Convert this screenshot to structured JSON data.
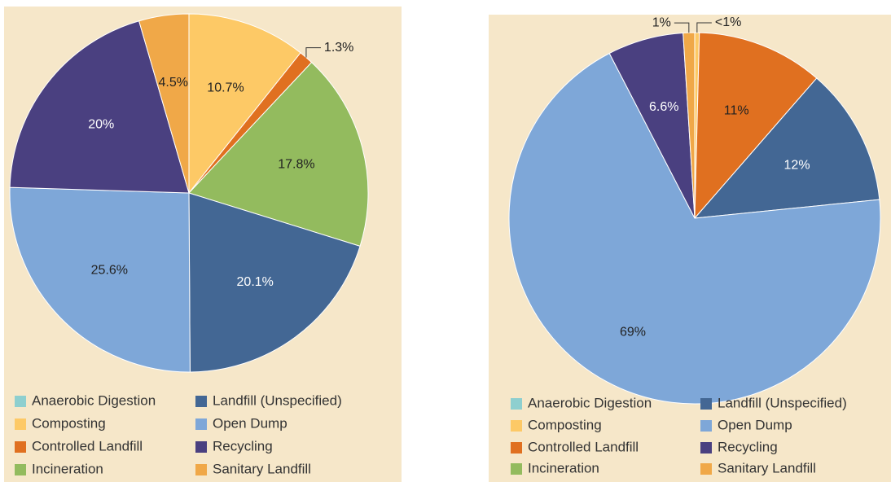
{
  "chart_data": [
    {
      "type": "pie",
      "categories": [
        "Anaerobic Digestion",
        "Composting",
        "Controlled Landfill",
        "Incineration",
        "Landfill (Unspecified)",
        "Open Dump",
        "Recycling",
        "Sanitary Landfill"
      ],
      "values": [
        0,
        10.7,
        1.3,
        17.8,
        20.1,
        25.6,
        20,
        4.5
      ],
      "value_labels": [
        null,
        "10.7%",
        "1.3%",
        "17.8%",
        "20.1%",
        "25.6%",
        "20%",
        "4.5%"
      ],
      "colors": [
        "#8ecfcf",
        "#fdc966",
        "#e07020",
        "#93bb5e",
        "#436794",
        "#7ea7d8",
        "#4a4080",
        "#f0a848"
      ]
    },
    {
      "type": "pie",
      "categories": [
        "Anaerobic Digestion",
        "Composting",
        "Controlled Landfill",
        "Incineration",
        "Landfill (Unspecified)",
        "Open Dump",
        "Recycling",
        "Sanitary Landfill"
      ],
      "values": [
        0,
        0.4,
        11,
        0,
        12,
        69,
        6.6,
        1
      ],
      "value_labels": [
        null,
        "<1%",
        "11%",
        null,
        "12%",
        "69%",
        "6.6%",
        "1%"
      ],
      "colors": [
        "#8ecfcf",
        "#fdc966",
        "#e07020",
        "#93bb5e",
        "#436794",
        "#7ea7d8",
        "#4a4080",
        "#f0a848"
      ]
    }
  ]
}
